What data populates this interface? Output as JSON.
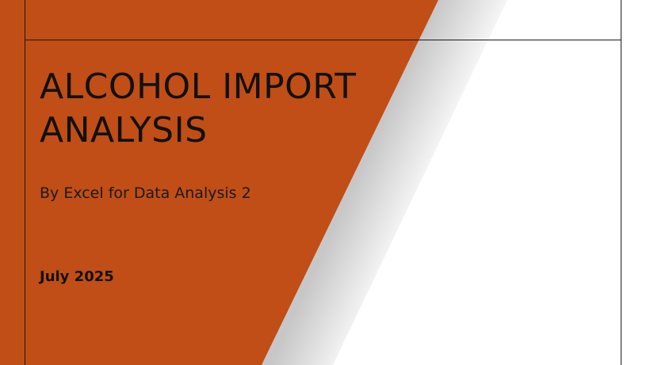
{
  "slide": {
    "title_line1": "ALCOHOL IMPORT",
    "title_line2": "ANALYSIS",
    "subtitle": "By Excel for Data Analysis 2",
    "date": "July 2025"
  },
  "colors": {
    "accent": "#C04E16",
    "background": "#FFFFFF",
    "text": "#111111",
    "rule": "#1A1A1A"
  }
}
